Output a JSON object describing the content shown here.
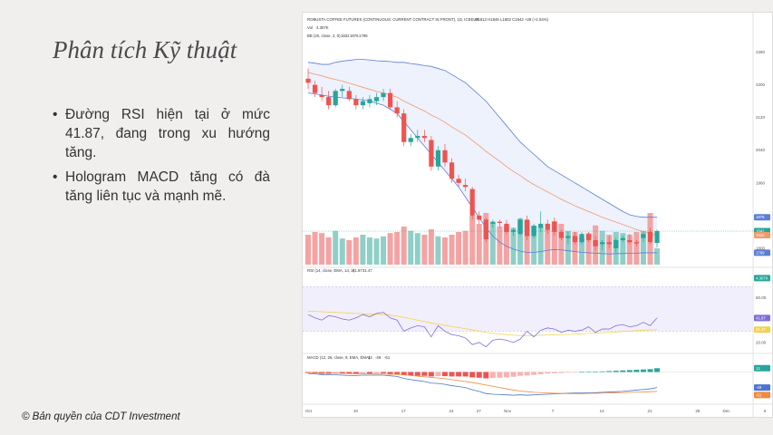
{
  "slide": {
    "title": "Phân tích Kỹ thuật",
    "bullets": [
      "Đường RSI hiện tại ở mức 41.87, đang trong xu hướng tăng.",
      "Hologram MACD tăng có đà tăng liên tục và mạnh mẽ."
    ],
    "copyright": "© Bản quyền của CDT Investment"
  },
  "colors": {
    "up": "#26a69a",
    "down": "#ef5350",
    "vol_up": "#8fcfc7",
    "vol_down": "#f4a3a3",
    "bb_line": "#5b7fd4",
    "ema_line": "#f39a6a",
    "rsi_line": "#7e6fd6",
    "rsi_ma": "#f1d34a",
    "macd_line": "#4c74d1",
    "signal_line": "#f08a3c"
  },
  "chart_data": [
    {
      "type": "candlestick",
      "title": "ROBUSTA COFFEE FUTURES (CONTINUOUS: CURRENT CONTRACT IN FRONT), 1D, ICEEUR",
      "ohlc_text": "O1813 H1846 L1802 C1842 +28 (+1.54%)",
      "vol_label": "Vol",
      "vol_value": "4.307K",
      "bb_label": "BB (20, close, 2, 0)",
      "bb_values": [
        "1832",
        "1876",
        "1789"
      ],
      "ylim": [
        1760,
        2310
      ],
      "y_ticks": [
        "1800",
        "1880",
        "1960",
        "2040",
        "2120",
        "2200",
        "2280"
      ],
      "x_ticks": [
        "Oct",
        "10",
        "17",
        "24",
        "27",
        "Nov",
        "7",
        "14",
        "21",
        "28",
        "Dec",
        "6"
      ],
      "x_tick_days": [
        0,
        7,
        14,
        21,
        25,
        29,
        36,
        43,
        50,
        57,
        61,
        67
      ],
      "price_tags": [
        {
          "label": "1876",
          "value": 1876,
          "color": "#5b7fd4"
        },
        {
          "label": "1842",
          "value": 1842,
          "color": "#26a69a"
        },
        {
          "label": "1832",
          "value": 1832,
          "color": "#f39a6a"
        },
        {
          "label": "1789",
          "value": 1789,
          "color": "#5b7fd4"
        },
        {
          "label": "4.307K",
          "value": 1727,
          "color": "#26a69a"
        }
      ],
      "candles": [
        {
          "d": 0,
          "o": 2215,
          "h": 2240,
          "l": 2190,
          "c": 2205
        },
        {
          "d": 1,
          "o": 2200,
          "h": 2210,
          "l": 2170,
          "c": 2180
        },
        {
          "d": 2,
          "o": 2175,
          "h": 2195,
          "l": 2160,
          "c": 2170
        },
        {
          "d": 3,
          "o": 2170,
          "h": 2185,
          "l": 2140,
          "c": 2150
        },
        {
          "d": 4,
          "o": 2150,
          "h": 2190,
          "l": 2145,
          "c": 2185
        },
        {
          "d": 5,
          "o": 2185,
          "h": 2200,
          "l": 2170,
          "c": 2190
        },
        {
          "d": 6,
          "o": 2185,
          "h": 2195,
          "l": 2160,
          "c": 2165
        },
        {
          "d": 7,
          "o": 2165,
          "h": 2175,
          "l": 2140,
          "c": 2150
        },
        {
          "d": 8,
          "o": 2150,
          "h": 2170,
          "l": 2140,
          "c": 2160
        },
        {
          "d": 9,
          "o": 2155,
          "h": 2175,
          "l": 2145,
          "c": 2165
        },
        {
          "d": 10,
          "o": 2160,
          "h": 2180,
          "l": 2150,
          "c": 2170
        },
        {
          "d": 11,
          "o": 2170,
          "h": 2190,
          "l": 2160,
          "c": 2180
        },
        {
          "d": 12,
          "o": 2180,
          "h": 2190,
          "l": 2140,
          "c": 2145
        },
        {
          "d": 13,
          "o": 2145,
          "h": 2160,
          "l": 2120,
          "c": 2130
        },
        {
          "d": 14,
          "o": 2130,
          "h": 2140,
          "l": 2050,
          "c": 2060
        },
        {
          "d": 15,
          "o": 2060,
          "h": 2080,
          "l": 2050,
          "c": 2070
        },
        {
          "d": 16,
          "o": 2070,
          "h": 2090,
          "l": 2060,
          "c": 2075
        },
        {
          "d": 17,
          "o": 2075,
          "h": 2090,
          "l": 2060,
          "c": 2070
        },
        {
          "d": 18,
          "o": 2065,
          "h": 2075,
          "l": 1990,
          "c": 2000
        },
        {
          "d": 19,
          "o": 2000,
          "h": 2050,
          "l": 1990,
          "c": 2040
        },
        {
          "d": 20,
          "o": 2040,
          "h": 2055,
          "l": 2000,
          "c": 2010
        },
        {
          "d": 21,
          "o": 2010,
          "h": 2020,
          "l": 1960,
          "c": 1970
        },
        {
          "d": 22,
          "o": 1970,
          "h": 1980,
          "l": 1950,
          "c": 1960
        },
        {
          "d": 23,
          "o": 1955,
          "h": 1970,
          "l": 1940,
          "c": 1950
        },
        {
          "d": 24,
          "o": 1945,
          "h": 1950,
          "l": 1870,
          "c": 1880
        },
        {
          "d": 25,
          "o": 1880,
          "h": 1890,
          "l": 1860,
          "c": 1870
        },
        {
          "d": 26,
          "o": 1870,
          "h": 1875,
          "l": 1815,
          "c": 1822
        },
        {
          "d": 27,
          "o": 1860,
          "h": 1870,
          "l": 1850,
          "c": 1865
        },
        {
          "d": 28,
          "o": 1865,
          "h": 1870,
          "l": 1850,
          "c": 1862
        },
        {
          "d": 29,
          "o": 1860,
          "h": 1870,
          "l": 1835,
          "c": 1840
        },
        {
          "d": 30,
          "o": 1840,
          "h": 1850,
          "l": 1830,
          "c": 1845
        },
        {
          "d": 31,
          "o": 1835,
          "h": 1875,
          "l": 1830,
          "c": 1870
        },
        {
          "d": 32,
          "o": 1870,
          "h": 1880,
          "l": 1820,
          "c": 1830
        },
        {
          "d": 33,
          "o": 1830,
          "h": 1860,
          "l": 1825,
          "c": 1855
        },
        {
          "d": 34,
          "o": 1850,
          "h": 1890,
          "l": 1840,
          "c": 1860
        },
        {
          "d": 35,
          "o": 1860,
          "h": 1870,
          "l": 1835,
          "c": 1845
        },
        {
          "d": 36,
          "o": 1865,
          "h": 1875,
          "l": 1830,
          "c": 1840
        },
        {
          "d": 37,
          "o": 1840,
          "h": 1845,
          "l": 1820,
          "c": 1825
        },
        {
          "d": 38,
          "o": 1825,
          "h": 1840,
          "l": 1810,
          "c": 1830
        },
        {
          "d": 39,
          "o": 1830,
          "h": 1840,
          "l": 1810,
          "c": 1815
        },
        {
          "d": 40,
          "o": 1815,
          "h": 1840,
          "l": 1810,
          "c": 1835
        },
        {
          "d": 41,
          "o": 1835,
          "h": 1840,
          "l": 1815,
          "c": 1820
        },
        {
          "d": 42,
          "o": 1820,
          "h": 1830,
          "l": 1795,
          "c": 1805
        },
        {
          "d": 43,
          "o": 1810,
          "h": 1820,
          "l": 1795,
          "c": 1815
        },
        {
          "d": 44,
          "o": 1815,
          "h": 1830,
          "l": 1800,
          "c": 1810
        },
        {
          "d": 45,
          "o": 1800,
          "h": 1825,
          "l": 1790,
          "c": 1820
        },
        {
          "d": 46,
          "o": 1820,
          "h": 1830,
          "l": 1815,
          "c": 1825
        },
        {
          "d": 47,
          "o": 1820,
          "h": 1835,
          "l": 1810,
          "c": 1815
        },
        {
          "d": 48,
          "o": 1815,
          "h": 1820,
          "l": 1805,
          "c": 1812
        },
        {
          "d": 49,
          "o": 1825,
          "h": 1840,
          "l": 1815,
          "c": 1835
        },
        {
          "d": 50,
          "o": 1840,
          "h": 1850,
          "l": 1810,
          "c": 1815
        },
        {
          "d": 51,
          "o": 1813,
          "h": 1846,
          "l": 1802,
          "c": 1842
        }
      ],
      "volume": [
        0.55,
        0.6,
        0.58,
        0.5,
        0.62,
        0.48,
        0.45,
        0.5,
        0.55,
        0.5,
        0.48,
        0.52,
        0.58,
        0.6,
        0.7,
        0.62,
        0.58,
        0.55,
        0.65,
        0.52,
        0.5,
        0.55,
        0.6,
        0.62,
        0.9,
        0.75,
        0.95,
        0.78,
        0.7,
        0.72,
        0.68,
        0.85,
        0.82,
        0.72,
        0.7,
        0.65,
        0.8,
        0.75,
        0.62,
        0.6,
        0.5,
        0.58,
        0.72,
        0.62,
        0.55,
        0.6,
        0.58,
        0.55,
        0.6,
        0.62,
        0.95,
        0.3
      ],
      "ema": [
        2230,
        2226,
        2222,
        2217,
        2213,
        2209,
        2204,
        2199,
        2194,
        2189,
        2184,
        2180,
        2175,
        2170,
        2160,
        2152,
        2144,
        2136,
        2126,
        2118,
        2108,
        2097,
        2087,
        2077,
        2064,
        2051,
        2037,
        2025,
        2013,
        2000,
        1988,
        1978,
        1966,
        1956,
        1947,
        1938,
        1929,
        1920,
        1912,
        1904,
        1897,
        1890,
        1883,
        1876,
        1870,
        1864,
        1858,
        1852,
        1846,
        1841,
        1836,
        1832
      ],
      "bb_upper": [
        2255,
        2253,
        2250,
        2250,
        2255,
        2258,
        2260,
        2262,
        2262,
        2261,
        2259,
        2258,
        2257,
        2255,
        2255,
        2252,
        2250,
        2247,
        2245,
        2240,
        2235,
        2225,
        2215,
        2205,
        2190,
        2175,
        2160,
        2140,
        2120,
        2100,
        2080,
        2060,
        2045,
        2030,
        2015,
        2000,
        1990,
        1980,
        1970,
        1960,
        1950,
        1940,
        1930,
        1920,
        1910,
        1900,
        1890,
        1882,
        1878,
        1876,
        1876,
        1876
      ],
      "bb_lower": [
        2180,
        2178,
        2175,
        2172,
        2170,
        2168,
        2167,
        2165,
        2163,
        2160,
        2155,
        2150,
        2140,
        2130,
        2110,
        2090,
        2070,
        2050,
        2030,
        2010,
        1990,
        1970,
        1950,
        1925,
        1900,
        1875,
        1850,
        1830,
        1815,
        1805,
        1798,
        1793,
        1790,
        1790,
        1792,
        1795,
        1797,
        1796,
        1794,
        1792,
        1790,
        1789,
        1788,
        1787,
        1786,
        1787,
        1787,
        1788,
        1788,
        1789,
        1789,
        1789
      ]
    },
    {
      "type": "line",
      "label": "RSI (14, close, EMA, 14, 2)",
      "values_text": [
        "41.87",
        "31.47"
      ],
      "ylim": [
        15,
        80
      ],
      "y_ticks": [
        "20.00",
        "40.00",
        "60.00"
      ],
      "tags": [
        {
          "label": "41.87",
          "value": 41.87,
          "color": "#7e6fd6"
        },
        {
          "label": "31.47",
          "value": 31.47,
          "color": "#f1d34a"
        }
      ],
      "band": [
        30,
        70
      ],
      "rsi": [
        45,
        42,
        40,
        44,
        43,
        41,
        40,
        42,
        45,
        43,
        46,
        47,
        42,
        40,
        30,
        33,
        35,
        34,
        25,
        35,
        30,
        27,
        26,
        24,
        18,
        20,
        16,
        22,
        23,
        22,
        20,
        23,
        30,
        25,
        31,
        33,
        32,
        29,
        31,
        30,
        31,
        34,
        29,
        32,
        32,
        35,
        36,
        34,
        35,
        38,
        35,
        42
      ],
      "rsi_ma": [
        48,
        47.8,
        47.5,
        47.2,
        47,
        46.7,
        46.3,
        46,
        45.7,
        45.4,
        45.2,
        45,
        44.4,
        43.6,
        42.4,
        41.2,
        40,
        38.8,
        37.4,
        36.4,
        35.3,
        34.2,
        33.3,
        32.4,
        31.2,
        30.1,
        29,
        28.2,
        27.6,
        27,
        26.5,
        26.2,
        26.3,
        26.2,
        26.4,
        26.6,
        26.8,
        26.9,
        27.2,
        27.4,
        27.7,
        28.1,
        28.3,
        28.6,
        28.9,
        29.3,
        29.8,
        30.1,
        30.5,
        31,
        31.2,
        31.47
      ]
    },
    {
      "type": "bar",
      "label": "MACD (12, 26, close, 9, EMA, EMA)",
      "values_text": [
        "12",
        "-49",
        "-61"
      ],
      "ylim": [
        -90,
        30
      ],
      "tags": [
        {
          "label": "12",
          "value": 12,
          "color": "#26a69a"
        },
        {
          "label": "-49",
          "value": -49,
          "color": "#4c74d1"
        },
        {
          "label": "-61",
          "value": -61,
          "color": "#f08a3c"
        }
      ],
      "hist": [
        -3,
        -4,
        -6,
        -6,
        -5,
        -5,
        -6,
        -6,
        -5,
        -5,
        -4,
        -4,
        -6,
        -7,
        -10,
        -11,
        -12,
        -12,
        -14,
        -13,
        -13,
        -14,
        -14,
        -14,
        -17,
        -18,
        -20,
        -19,
        -18,
        -17,
        -15,
        -12,
        -11,
        -9,
        -7,
        -5,
        -4,
        -3,
        -2,
        -1,
        0,
        1,
        1,
        2,
        3,
        4,
        5,
        6,
        7,
        8,
        9,
        12
      ],
      "macd": [
        -5,
        -6,
        -8,
        -9,
        -9,
        -10,
        -11,
        -11,
        -10,
        -10,
        -10,
        -10,
        -12,
        -14,
        -20,
        -24,
        -27,
        -30,
        -35,
        -36,
        -39,
        -43,
        -46,
        -49,
        -56,
        -61,
        -68,
        -70,
        -71,
        -72,
        -73,
        -72,
        -73,
        -72,
        -71,
        -70,
        -69,
        -68,
        -67,
        -66,
        -66,
        -65,
        -65,
        -64,
        -63,
        -62,
        -61,
        -59,
        -57,
        -55,
        -53,
        -49
      ],
      "signal": [
        -2,
        -2.5,
        -3,
        -3.5,
        -4,
        -4.5,
        -5,
        -5.5,
        -5.8,
        -6,
        -6.3,
        -6.5,
        -7,
        -7.5,
        -9,
        -11,
        -13,
        -15,
        -17,
        -19,
        -21,
        -24,
        -27,
        -30,
        -33,
        -37,
        -41,
        -45,
        -49,
        -53,
        -57,
        -60,
        -62,
        -64,
        -65,
        -66,
        -67,
        -67.5,
        -68,
        -68,
        -68,
        -67.5,
        -67,
        -66.5,
        -66,
        -65.5,
        -65,
        -64,
        -63.5,
        -63,
        -62,
        -61
      ]
    }
  ]
}
